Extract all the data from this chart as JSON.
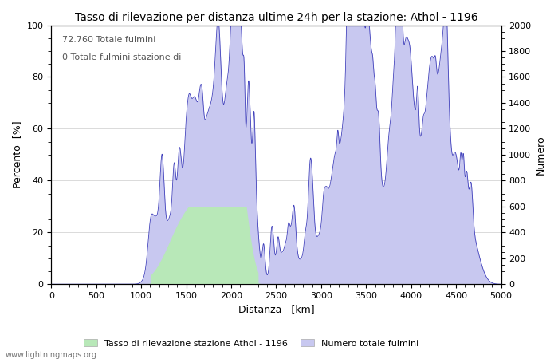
{
  "title": "Tasso di rilevazione per distanza ultime 24h per la stazione: Athol - 1196",
  "xlabel": "Distanza   [km]",
  "ylabel_left": "Percento  [%]",
  "ylabel_right": "Numero",
  "annotation_line1": "72.760 Totale fulmini",
  "annotation_line2": "0 Totale fulmini stazione di",
  "legend_label1": "Tasso di rilevazione stazione Athol - 1196",
  "legend_label2": "Numero totale fulmini",
  "footer": "www.lightningmaps.org",
  "xlim": [
    0,
    5000
  ],
  "ylim_left": [
    0,
    100
  ],
  "ylim_right": [
    0,
    2000
  ],
  "xticks": [
    0,
    500,
    1000,
    1500,
    2000,
    2500,
    3000,
    3500,
    4000,
    4500,
    5000
  ],
  "yticks_left": [
    0,
    20,
    40,
    60,
    80,
    100
  ],
  "yticks_right": [
    0,
    200,
    400,
    600,
    800,
    1000,
    1200,
    1400,
    1600,
    1800,
    2000
  ],
  "color_fill_green": "#b8e8b8",
  "color_fill_blue": "#c8c8f0",
  "color_line_blue": "#4040bb",
  "color_grid": "#aaaaaa",
  "bg_color": "#ffffff"
}
